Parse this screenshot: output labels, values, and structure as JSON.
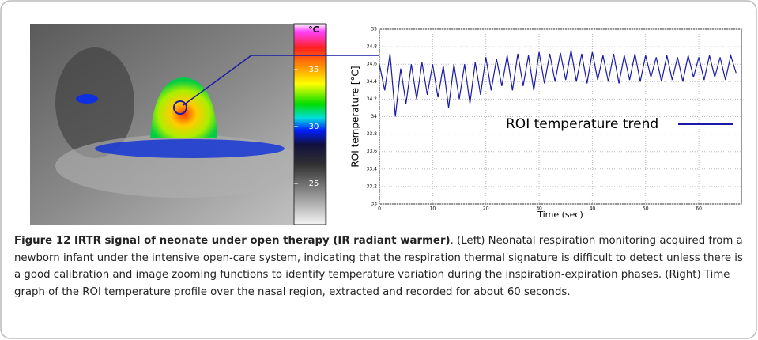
{
  "thermal_image": {
    "unit": "°C",
    "scale_labels": [
      35,
      30,
      25
    ]
  },
  "chart_data": {
    "type": "line",
    "y_label": "ROI temperature [°C]",
    "x_label": "Time (sec)",
    "x": [
      0,
      1,
      2,
      3,
      4,
      5,
      6,
      7,
      8,
      9,
      10,
      11,
      12,
      13,
      14,
      15,
      16,
      17,
      18,
      19,
      20,
      21,
      22,
      23,
      24,
      25,
      26,
      27,
      28,
      29,
      30,
      31,
      32,
      33,
      34,
      35,
      36,
      37,
      38,
      39,
      40,
      41,
      42,
      43,
      44,
      45,
      46,
      47,
      48,
      49,
      50,
      51,
      52,
      53,
      54,
      55,
      56,
      57,
      58,
      59,
      60,
      61,
      62,
      63,
      64,
      65,
      66,
      67
    ],
    "series": [
      {
        "name": "ROI temperature trend",
        "color": "#1a1aa8",
        "values": [
          34.6,
          34.3,
          34.72,
          34.0,
          34.55,
          34.15,
          34.6,
          34.2,
          34.62,
          34.25,
          34.6,
          34.22,
          34.58,
          34.1,
          34.6,
          34.2,
          34.6,
          34.15,
          34.62,
          34.25,
          34.68,
          34.3,
          34.66,
          34.35,
          34.7,
          34.3,
          34.72,
          34.35,
          34.7,
          34.3,
          34.74,
          34.38,
          34.72,
          34.4,
          34.73,
          34.42,
          34.76,
          34.4,
          34.72,
          34.38,
          34.74,
          34.42,
          34.7,
          34.4,
          34.72,
          34.38,
          34.7,
          34.42,
          34.72,
          34.4,
          34.7,
          34.45,
          34.68,
          34.4,
          34.7,
          34.42,
          34.68,
          34.4,
          34.7,
          34.45,
          34.68,
          34.42,
          34.7,
          34.45,
          34.68,
          34.42,
          34.7,
          34.5
        ]
      }
    ],
    "xlim": [
      0,
      68
    ],
    "xticks": [
      0,
      10,
      20,
      30,
      40,
      50,
      60
    ],
    "ylim": [
      33,
      35
    ],
    "yticks": [
      33,
      33.2,
      33.4,
      33.6,
      33.8,
      34,
      34.2,
      34.4,
      34.6,
      34.8,
      35
    ],
    "grid": true
  },
  "caption": {
    "title": "Figure 12 IRTR signal of neonate under open therapy (IR radiant warmer)",
    "text": ". (Left) Neonatal respiration monitoring acquired from a newborn infant under the intensive open-care system, indicating that the respiration thermal signature is difficult to detect unless there is a good calibration and image zooming functions to identify temperature variation during the inspiration-expiration phases. (Right) Time graph of the ROI temperature profile over the nasal region, extracted and recorded for about 60 seconds."
  }
}
